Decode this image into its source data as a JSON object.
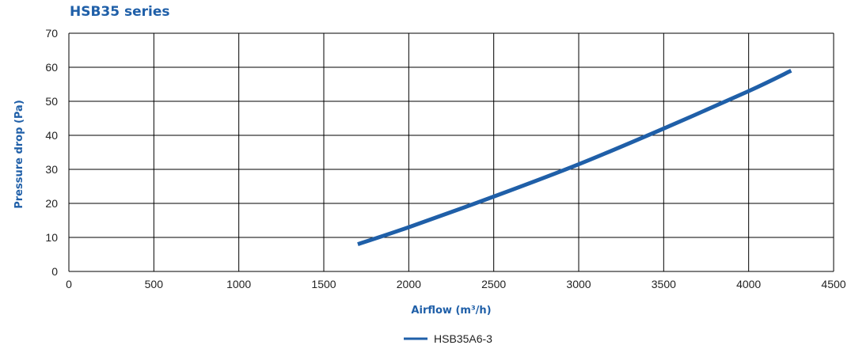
{
  "chart_data": {
    "type": "line",
    "title": "HSB35 series",
    "xlabel": "Airflow (m³/h)",
    "ylabel": "Pressure drop (Pa)",
    "xlim": [
      0,
      4500
    ],
    "ylim": [
      0,
      70
    ],
    "x_ticks": [
      "0",
      "500",
      "1000",
      "1500",
      "2000",
      "2500",
      "3000",
      "3500",
      "4000",
      "4500"
    ],
    "y_ticks": [
      "0",
      "10",
      "20",
      "30",
      "40",
      "50",
      "60",
      "70"
    ],
    "grid": true,
    "legend_position": "bottom-center",
    "series": [
      {
        "name": "HSB35A6-3",
        "color": "#1f5fa8",
        "x": [
          1700,
          2000,
          2500,
          3000,
          3500,
          4000,
          4250
        ],
        "y": [
          8,
          13,
          22,
          31.5,
          42,
          53,
          59
        ]
      }
    ]
  }
}
